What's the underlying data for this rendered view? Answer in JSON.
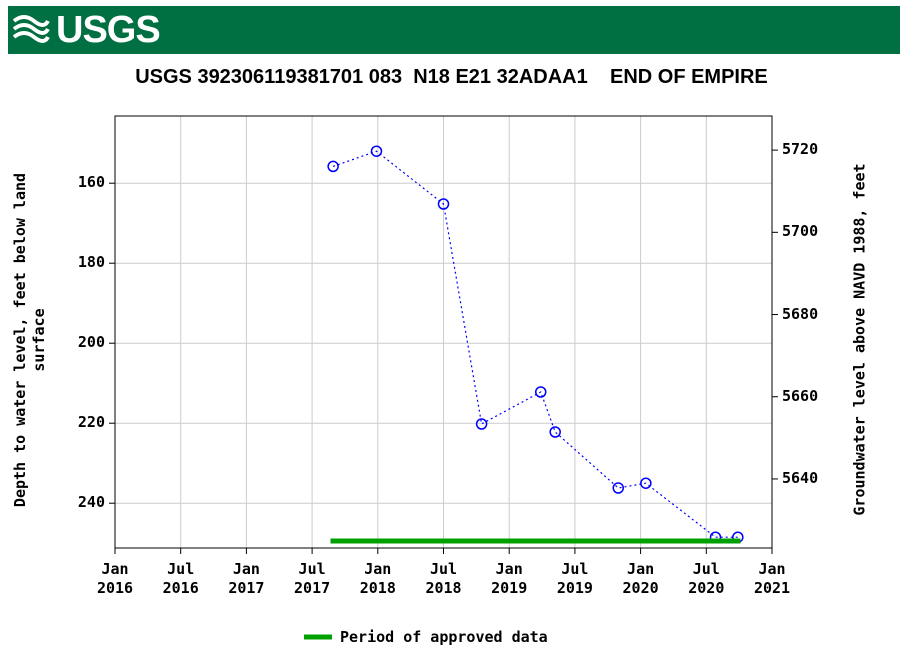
{
  "header": {
    "logo": "USGS"
  },
  "chart_data": {
    "type": "line",
    "title": "USGS 392306119381701 083  N18 E21 32ADAA1    END OF EMPIRE",
    "ylabel": "Depth to water level, feet below land surface",
    "y2label": "Groundwater level above NAVD 1988, feet",
    "x": [
      2017.66,
      2017.99,
      2018.5,
      2018.79,
      2019.24,
      2019.35,
      2019.83,
      2020.04,
      2020.57,
      2020.74
    ],
    "series": [
      {
        "name": "Depth to water level",
        "color": "#0000ff",
        "values": [
          155.8,
          152.0,
          165.2,
          220.2,
          212.2,
          222.2,
          236.2,
          235.0,
          248.5,
          248.5
        ]
      }
    ],
    "xlim": [
      2016,
      2021
    ],
    "xticks": [
      {
        "value": 2016,
        "label": "Jan 2016"
      },
      {
        "value": 2016.5,
        "label": "Jul 2016"
      },
      {
        "value": 2017,
        "label": "Jan 2017"
      },
      {
        "value": 2017.5,
        "label": "Jul 2017"
      },
      {
        "value": 2018,
        "label": "Jan 2018"
      },
      {
        "value": 2018.5,
        "label": "Jul 2018"
      },
      {
        "value": 2019,
        "label": "Jan 2019"
      },
      {
        "value": 2019.5,
        "label": "Jul 2019"
      },
      {
        "value": 2020,
        "label": "Jan 2020"
      },
      {
        "value": 2020.5,
        "label": "Jul 2020"
      },
      {
        "value": 2021,
        "label": "Jan 2021"
      }
    ],
    "ylim": [
      143.2,
      251.2
    ],
    "y_inverted": true,
    "yticks": [
      160,
      180,
      200,
      220,
      240
    ],
    "y2lim": [
      5623.2,
      5728.3
    ],
    "y2ticks": [
      5640,
      5660,
      5680,
      5700,
      5720
    ],
    "grid": true,
    "approved_period": {
      "name": "Period of approved data",
      "color": "#00a000",
      "x": [
        2017.64,
        2020.76
      ]
    }
  }
}
